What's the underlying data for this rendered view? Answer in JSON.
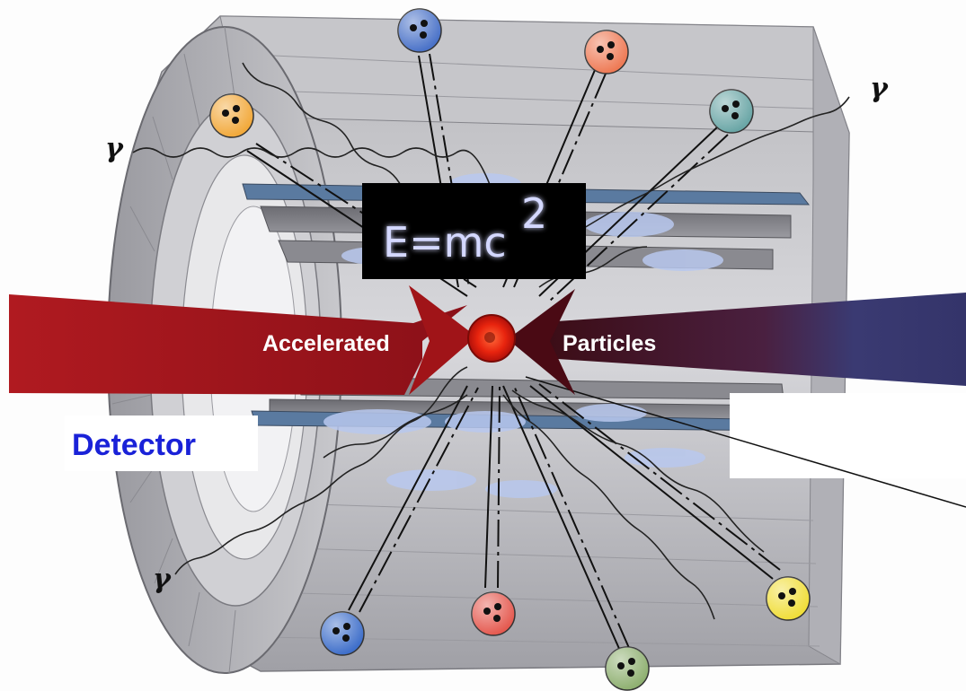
{
  "labels": {
    "equation": "E=mc",
    "equation_exponent": "2",
    "accelerated": "Accelerated",
    "particles": "Particles",
    "detector": "Detector",
    "gamma": "γ"
  },
  "colors": {
    "left_beam": "#a3161c",
    "right_beam": "#3a3a72",
    "collision": "#e8240e",
    "detector_label": "#1a22d8",
    "equation_bg": "#000000",
    "equation_glow": "#6a6cff"
  },
  "particles": [
    {
      "name": "particle-orange-top-left",
      "color": "#f2a93b"
    },
    {
      "name": "particle-blue-top",
      "color": "#4a72c8"
    },
    {
      "name": "particle-salmon-top",
      "color": "#ee7a55"
    },
    {
      "name": "particle-teal-top-right",
      "color": "#6aa6a6"
    },
    {
      "name": "particle-blue-bottom-left",
      "color": "#3f6fca"
    },
    {
      "name": "particle-red-bottom",
      "color": "#e55a50"
    },
    {
      "name": "particle-green-bottom",
      "color": "#8fb071"
    },
    {
      "name": "particle-yellow-bottom-right",
      "color": "#f0de3a"
    }
  ]
}
